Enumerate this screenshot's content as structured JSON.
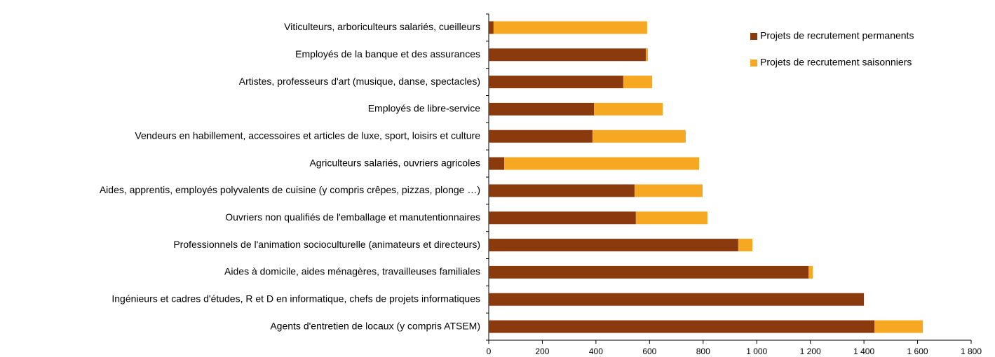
{
  "chart_data": {
    "type": "stacked_bar_horizontal",
    "categories": [
      "Viticulteurs, arboriculteurs salariés, cueilleurs",
      "Employés de la banque et des assurances",
      "Artistes, professeurs d'art (musique, danse, spectacles)",
      "Employés de libre-service",
      "Vendeurs en habillement, accessoires et articles de luxe, sport, loisirs et culture",
      "Agriculteurs salariés, ouvriers agricoles",
      "Aides, apprentis, employés polyvalents de cuisine (y compris crêpes, pizzas, plonge …)",
      "Ouvriers non qualifiés de l'emballage et manutentionnaires",
      "Professionnels de l'animation socioculturelle (animateurs et directeurs)",
      "Aides à domicile, aides ménagères, travailleuses familiales",
      "Ingénieurs et cadres d'études, R et D en informatique, chefs de projets informatiques",
      "Agents d'entretien de locaux (y compris ATSEM)"
    ],
    "series": [
      {
        "name": "Projets de recrutement permanents",
        "color": "#8b3a0e",
        "values": [
          18,
          586,
          502,
          393,
          387,
          58,
          544,
          549,
          931,
          1193,
          1400,
          1439
        ]
      },
      {
        "name": "Projets de recrutement saisonniers",
        "color": "#f7a823",
        "values": [
          573,
          8,
          108,
          256,
          348,
          727,
          254,
          267,
          53,
          16,
          0,
          181
        ]
      }
    ],
    "xlim": [
      0,
      1800
    ],
    "xticks": [
      0,
      200,
      400,
      600,
      800,
      {
        "value": 1000,
        "label": "1 000"
      },
      {
        "value": 1200,
        "label": "1 200"
      },
      {
        "value": 1400,
        "label": "1 400"
      },
      {
        "value": 1600,
        "label": "1 600"
      },
      {
        "value": 1800,
        "label": "1 800"
      }
    ],
    "legend": "top-right"
  }
}
